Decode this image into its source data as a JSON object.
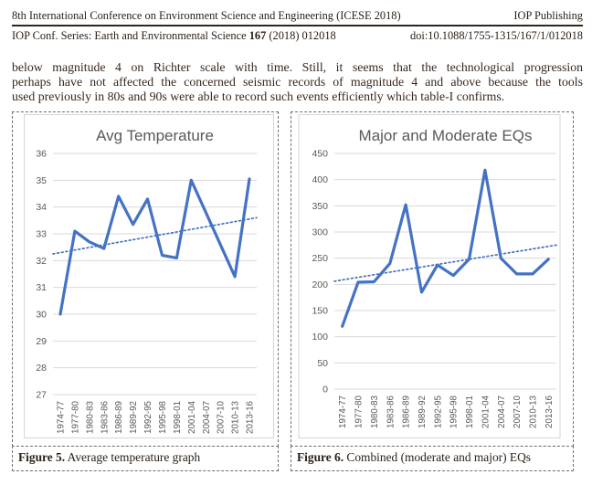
{
  "header": {
    "conference": "8th International Conference on Environment Science and Engineering (ICESE 2018)",
    "publisher": "IOP Publishing",
    "series": "IOP Conf. Series: Earth and Environmental Science",
    "series_number": "167",
    "series_rest": "(2018) 012018",
    "doi": "doi:10.1088/1755-1315/167/1/012018"
  },
  "paragraph": {
    "lines": [
      "below magnitude 4 on Richter scale with time.  Still, it seems that the technological progression",
      "perhaps  have not affected the concerned seismic records of magnitude 4 and above because the tools",
      "used previously in 80s and 90s were able to record such events efficiently which table-I confirms."
    ]
  },
  "chart_data": [
    {
      "type": "line",
      "title": "Avg Temperature",
      "categories": [
        "1974-77",
        "1977-80",
        "1980-83",
        "1983-86",
        "1986-89",
        "1989-92",
        "1992-95",
        "1995-98",
        "1998-01",
        "2001-04",
        "2004-07",
        "2007-10",
        "2010-13",
        "2013-16"
      ],
      "series": [
        {
          "name": "Avg Temperature",
          "values": [
            30.0,
            33.1,
            32.7,
            32.45,
            34.4,
            33.35,
            34.3,
            32.2,
            32.1,
            35.0,
            33.8,
            32.6,
            31.4,
            35.05
          ]
        }
      ],
      "trendline": {
        "style": "dotted",
        "start": 32.25,
        "end": 33.6
      },
      "ylim": [
        27,
        36
      ],
      "ytick_step": 1,
      "grid": true,
      "legend": "none",
      "xlabel": "",
      "ylabel": ""
    },
    {
      "type": "line",
      "title": "Major and Moderate EQs",
      "categories": [
        "1974-77",
        "1977-80",
        "1980-83",
        "1983-86",
        "1986-89",
        "1989-92",
        "1992-95",
        "1995-98",
        "1998-01",
        "2001-04",
        "2004-07",
        "2007-10",
        "2010-13",
        "2013-16"
      ],
      "series": [
        {
          "name": "Major and Moderate EQs",
          "values": [
            120,
            204,
            205,
            240,
            352,
            185,
            237,
            217,
            248,
            418,
            250,
            220,
            220,
            248
          ]
        }
      ],
      "trendline": {
        "style": "dotted",
        "start": 206,
        "end": 275
      },
      "ylim": [
        0,
        450
      ],
      "ytick_step": 50,
      "grid": true,
      "legend": "none",
      "xlabel": "",
      "ylabel": ""
    }
  ],
  "captions": [
    {
      "label": "Figure 5.",
      "text": " Average temperature graph"
    },
    {
      "label": "Figure 6.",
      "text": " Combined (moderate and major) EQs"
    }
  ],
  "colors": {
    "line": "#4472C4",
    "trend": "#4472C4",
    "gridline": "#D9D9D9",
    "chart_border": "#D6D6D6",
    "chart_text": "#595959"
  }
}
